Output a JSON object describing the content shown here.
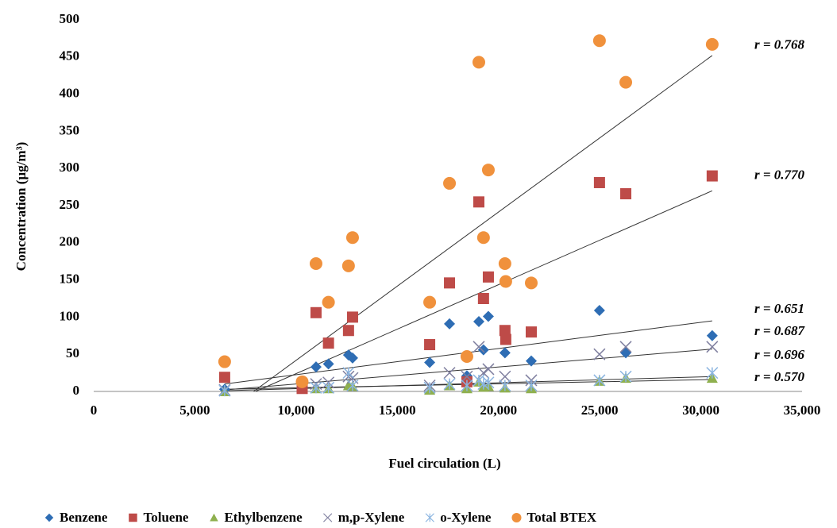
{
  "chart_data": {
    "type": "scatter",
    "x_label": "Fuel circulation (L)",
    "y_label": "Concentration (µg/m³)",
    "x": [
      6470,
      10300,
      10985,
      11600,
      12590,
      12790,
      16600,
      17580,
      18440,
      19030,
      19260,
      19500,
      20320,
      20360,
      21620,
      24990,
      26290,
      30560
    ],
    "series": [
      {
        "name": "Benzene",
        "color": "#2e6db4",
        "marker": "diamond",
        "values": [
          3,
          null,
          33,
          37,
          49,
          45,
          39,
          91,
          21,
          94,
          56,
          101,
          52,
          null,
          41,
          109,
          52,
          75
        ]
      },
      {
        "name": "Toluene",
        "color": "#be4b48",
        "marker": "square",
        "values": [
          19,
          4,
          106,
          65,
          82,
          100,
          63,
          146,
          13,
          255,
          125,
          154,
          82,
          70,
          80,
          281,
          266,
          290
        ]
      },
      {
        "name": "Ethylbenzene",
        "color": "#8fb04f",
        "marker": "triangle",
        "values": [
          0,
          null,
          4,
          4,
          8,
          7,
          2,
          8,
          4,
          13,
          6,
          7,
          5,
          null,
          4,
          14,
          18,
          18
        ]
      },
      {
        "name": "m,p-Xylene",
        "color": "#7f7f9f",
        "marker": "x",
        "values": [
          2,
          null,
          10,
          12,
          20,
          18,
          8,
          25,
          20,
          60,
          25,
          30,
          20,
          null,
          15,
          50,
          60,
          60
        ]
      },
      {
        "name": "o-Xylene",
        "color": "#8ab4e0",
        "marker": "asterisk",
        "values": [
          1,
          null,
          5,
          5,
          25,
          8,
          5,
          10,
          8,
          15,
          10,
          12,
          8,
          null,
          8,
          15,
          20,
          25
        ]
      },
      {
        "name": "Total BTEX",
        "color": "#f0913c",
        "marker": "circle",
        "values": [
          40,
          13,
          172,
          120,
          169,
          207,
          120,
          280,
          47,
          443,
          207,
          298,
          172,
          148,
          146,
          472,
          416,
          467
        ]
      }
    ],
    "trendlines": [
      {
        "label": "r = 0.768",
        "x": [
          7900,
          30560
        ],
        "y": [
          0,
          452
        ]
      },
      {
        "label": "r = 0.770",
        "x": [
          8000,
          30560
        ],
        "y": [
          0,
          270
        ]
      },
      {
        "label": "r = 0.651",
        "x": [
          6470,
          30560
        ],
        "y": [
          10,
          95
        ]
      },
      {
        "label": "r = 0.687",
        "x": [
          6470,
          30560
        ],
        "y": [
          2,
          57
        ]
      },
      {
        "label": "r = 0.696",
        "x": [
          6470,
          30560
        ],
        "y": [
          1,
          20
        ]
      },
      {
        "label": "r = 0.570",
        "x": [
          6470,
          30560
        ],
        "y": [
          3,
          16
        ]
      }
    ],
    "label_y": [
      465,
      290,
      110,
      80,
      48,
      18
    ],
    "xlim": [
      0,
      35000
    ],
    "xticks": [
      0,
      {
        "value": 5000,
        "label": "5,000"
      },
      {
        "value": 10000,
        "label": "10,000"
      },
      {
        "value": 15000,
        "label": "15,000"
      },
      {
        "value": 20000,
        "label": "20,000"
      },
      {
        "value": 25000,
        "label": "25,000"
      },
      {
        "value": 30000,
        "label": "30,000"
      },
      {
        "value": 35000,
        "label": "35,000"
      }
    ],
    "ylim": [
      0,
      500
    ],
    "yticks": [
      0,
      50,
      100,
      150,
      200,
      250,
      300,
      350,
      400,
      450,
      500
    ]
  }
}
